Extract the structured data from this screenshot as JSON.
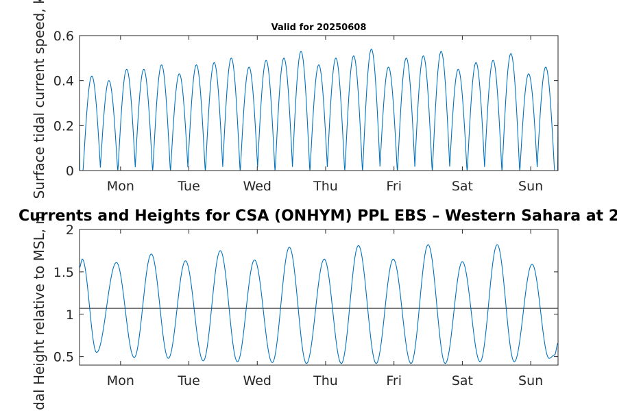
{
  "colors": {
    "series": "#0072BD",
    "axis": "#262626",
    "refline": "#404040",
    "background": "#ffffff"
  },
  "chart_data": [
    {
      "type": "line",
      "title": "Valid for 20250608",
      "ylabel": "Surface tidal current speed, kn",
      "ylim": [
        0,
        0.6
      ],
      "yticks": [
        0,
        0.2,
        0.4,
        0.6
      ],
      "ytick_labels": [
        "0",
        "0.2",
        "0.4",
        "0.6"
      ],
      "xlim_days": [
        -0.6,
        6.4
      ],
      "xtick_labels": [
        "Mon",
        "Tue",
        "Wed",
        "Thu",
        "Fri",
        "Sat",
        "Sun"
      ],
      "xtick_positions_days": [
        0,
        1,
        2,
        3,
        4,
        5,
        6
      ],
      "grid": false,
      "series": [
        {
          "peaks_days": [
            -0.42,
            -0.17,
            0.09,
            0.34,
            0.6,
            0.86,
            1.11,
            1.37,
            1.62,
            1.88,
            2.13,
            2.39,
            2.64,
            2.9,
            3.15,
            3.41,
            3.67,
            3.92,
            4.18,
            4.43,
            4.69,
            4.94,
            5.2,
            5.45,
            5.71,
            5.97,
            6.22
          ],
          "peak_values": [
            0.42,
            0.4,
            0.45,
            0.45,
            0.47,
            0.43,
            0.47,
            0.48,
            0.5,
            0.46,
            0.49,
            0.5,
            0.53,
            0.47,
            0.5,
            0.51,
            0.54,
            0.46,
            0.5,
            0.51,
            0.53,
            0.45,
            0.48,
            0.49,
            0.52,
            0.43,
            0.46
          ],
          "start_value": 0.17,
          "end_value": 0.3
        }
      ]
    },
    {
      "type": "line",
      "title": "Currents and Heights for CSA (ONHYM) PPL EBS  – Western Sahara at 2",
      "ylabel": "Tidal Height relative to MSL, m",
      "ylim": [
        0.4,
        2
      ],
      "yticks": [
        0.5,
        1,
        1.5,
        2
      ],
      "ytick_labels": [
        "0.5",
        "1",
        "1.5",
        "2"
      ],
      "xlim_days": [
        -0.6,
        6.4
      ],
      "xtick_labels": [
        "Mon",
        "Tue",
        "Wed",
        "Thu",
        "Fri",
        "Sat",
        "Sun"
      ],
      "xtick_positions_days": [
        0,
        1,
        2,
        3,
        4,
        5,
        6
      ],
      "grid": false,
      "reference_line": 1.07,
      "series": [
        {
          "extrema_days": [
            -0.56,
            -0.35,
            -0.06,
            0.2,
            0.45,
            0.7,
            0.95,
            1.21,
            1.46,
            1.71,
            1.96,
            2.22,
            2.47,
            2.72,
            2.98,
            3.23,
            3.48,
            3.74,
            3.99,
            4.25,
            4.5,
            4.75,
            5.0,
            5.26,
            5.51,
            5.76,
            6.02,
            6.27,
            6.35
          ],
          "extrema_values": [
            1.65,
            0.55,
            1.61,
            0.49,
            1.71,
            0.48,
            1.63,
            0.45,
            1.75,
            0.44,
            1.64,
            0.43,
            1.79,
            0.42,
            1.65,
            0.42,
            1.81,
            0.42,
            1.65,
            0.42,
            1.82,
            0.42,
            1.62,
            0.44,
            1.82,
            0.44,
            1.59,
            0.48,
            0.52
          ],
          "start_value": 1.55,
          "end_value": 0.66
        }
      ]
    }
  ]
}
